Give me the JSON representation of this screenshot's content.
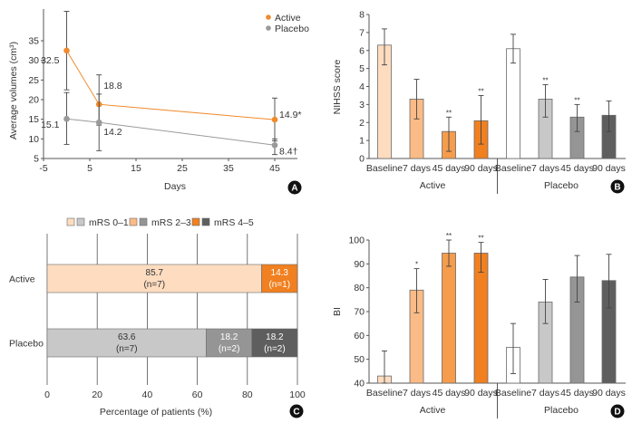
{
  "panels": {
    "A": {
      "badge": "A"
    },
    "B": {
      "badge": "B"
    },
    "C": {
      "badge": "C"
    },
    "D": {
      "badge": "D"
    }
  },
  "chart_data": [
    {
      "id": "A",
      "type": "line",
      "title": "",
      "xlabel": "Days",
      "ylabel": "Average volumes (cm³)",
      "xlim": [
        -5,
        50
      ],
      "ylim": [
        5,
        42
      ],
      "xticks": [
        -5,
        5,
        15,
        25,
        35,
        45
      ],
      "yticks": [
        5,
        10,
        15,
        20,
        25,
        30,
        35
      ],
      "legend": {
        "placement": "top-right"
      },
      "series": [
        {
          "name": "Active",
          "color": "#f08a2c",
          "x": [
            0,
            7,
            45
          ],
          "y": [
            32.5,
            18.8,
            14.9
          ],
          "err_low": [
            22.5,
            13.5,
            9.5
          ],
          "err_high": [
            42.5,
            26.3,
            20.4
          ],
          "labels": [
            "32.5",
            "18.8",
            "14.9*"
          ]
        },
        {
          "name": "Placebo",
          "color": "#9a9a9a",
          "x": [
            0,
            7,
            45
          ],
          "y": [
            15.1,
            14.2,
            8.4
          ],
          "err_low": [
            8.6,
            7.0,
            6.0
          ],
          "err_high": [
            21.8,
            21.4,
            10.0
          ],
          "labels": [
            "15.1",
            "14.2",
            "8.4†"
          ]
        }
      ]
    },
    {
      "id": "B",
      "type": "bar",
      "title": "",
      "xlabel": "",
      "ylabel": "NIHSS score",
      "ylim": [
        0,
        8
      ],
      "yticks": [
        0,
        1,
        2,
        3,
        4,
        5,
        6,
        7,
        8
      ],
      "groups": [
        "Active",
        "Placebo"
      ],
      "categories": [
        "Baseline",
        "7 days",
        "45 days",
        "90 days",
        "Baseline",
        "7 days",
        "45 days",
        "90 days"
      ],
      "values": [
        6.3,
        3.3,
        1.5,
        2.1,
        6.1,
        3.3,
        2.3,
        2.4
      ],
      "err_low": [
        5.2,
        2.2,
        0.4,
        0.8,
        5.3,
        2.3,
        1.5,
        1.5
      ],
      "err_high": [
        7.2,
        4.4,
        2.3,
        3.5,
        6.9,
        4.1,
        3.0,
        3.2
      ],
      "significance": [
        "",
        "",
        "**",
        "**",
        "",
        "**",
        "**",
        ""
      ],
      "colors": [
        "#fddcc0",
        "#fbbb86",
        "#f59c4d",
        "#f08020",
        "#ffffff",
        "#c8c8c8",
        "#959595",
        "#5e5e5e"
      ]
    },
    {
      "id": "C",
      "type": "bar",
      "orientation": "horizontal-stacked",
      "title": "",
      "xlabel": "Percentage of patients (%)",
      "ylabel": "",
      "xlim": [
        0,
        100
      ],
      "xticks": [
        0,
        20,
        40,
        60,
        80,
        100
      ],
      "grid": true,
      "legend": {
        "placement": "top",
        "entries": [
          "mRS 0–1",
          "mRS 2–3",
          "mRS 4–5"
        ]
      },
      "categories": [
        "Active",
        "Placebo"
      ],
      "series": [
        {
          "name": "mRS 0–1",
          "values": [
            85.7,
            63.6
          ],
          "n": [
            7,
            7
          ],
          "colors": [
            "#fddcc0",
            "#c8c8c8"
          ]
        },
        {
          "name": "mRS 2–3",
          "values": [
            0,
            18.2
          ],
          "n": [
            0,
            2
          ],
          "colors": [
            "#fbbb86",
            "#959595"
          ]
        },
        {
          "name": "mRS 4–5",
          "values": [
            14.3,
            18.2
          ],
          "n": [
            1,
            2
          ],
          "colors": [
            "#f08020",
            "#5e5e5e"
          ]
        }
      ],
      "bar_labels": [
        [
          {
            "value": "85.7",
            "n": "(n=7)"
          },
          null,
          {
            "value": "14.3",
            "n": "(n=1)"
          }
        ],
        [
          {
            "value": "63.6",
            "n": "(n=7)"
          },
          {
            "value": "18.2",
            "n": "(n=2)"
          },
          {
            "value": "18.2",
            "n": "(n=2)"
          }
        ]
      ]
    },
    {
      "id": "D",
      "type": "bar",
      "title": "",
      "xlabel": "",
      "ylabel": "BI",
      "ylim": [
        40,
        100
      ],
      "yticks": [
        40,
        50,
        60,
        70,
        80,
        90,
        100
      ],
      "groups": [
        "Active",
        "Placebo"
      ],
      "categories": [
        "Baseline",
        "7 days",
        "45 days",
        "90 days",
        "Baseline",
        "7 days",
        "45 days",
        "90 days"
      ],
      "values": [
        43,
        79,
        94.5,
        94.5,
        55,
        74,
        84.5,
        83
      ],
      "err_low": [
        40,
        69.5,
        89,
        86.5,
        44,
        65,
        74,
        71.5
      ],
      "err_high": [
        53.5,
        88,
        100,
        99,
        65,
        83.5,
        93.5,
        94
      ],
      "significance": [
        "",
        "*",
        "**",
        "**",
        "",
        "",
        "",
        ""
      ],
      "colors": [
        "#fddcc0",
        "#fbbb86",
        "#f59c4d",
        "#f08020",
        "#ffffff",
        "#c8c8c8",
        "#959595",
        "#5e5e5e"
      ]
    }
  ]
}
